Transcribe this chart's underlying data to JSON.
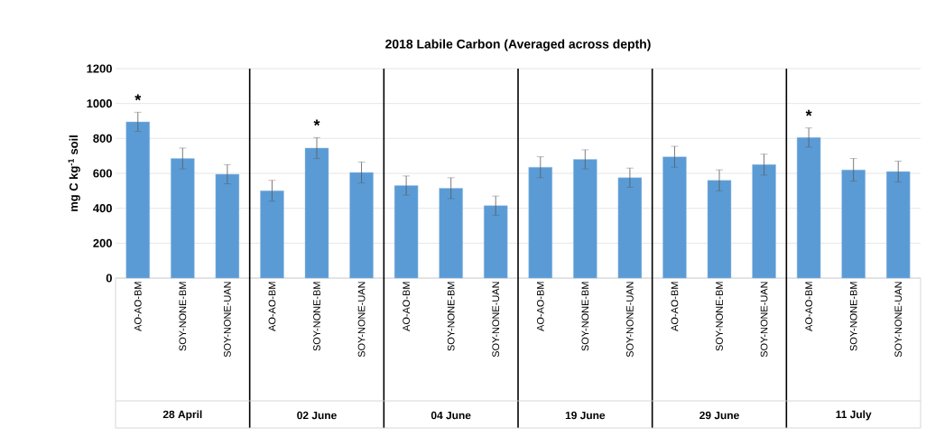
{
  "chart_data": {
    "type": "bar",
    "title": "2018 Labile Carbon (Averaged across depth)",
    "ylabel": "mg C kg$^{-1}$ soil",
    "categories": [
      "AO-AO-BM",
      "SOY-NONE-BM",
      "SOY-NONE-UAN",
      "AO-AO-BM",
      "SOY-NONE-BM",
      "SOY-NONE-UAN",
      "AO-AO-BM",
      "SOY-NONE-BM",
      "SOY-NONE-UAN",
      "AO-AO-BM",
      "SOY-NONE-BM",
      "SOY-NONE-UAN",
      "AO-AO-BM",
      "SOY-NONE-BM",
      "SOY-NONE-UAN",
      "AO-AO-BM",
      "SOY-NONE-BM",
      "SOY-NONE-UAN"
    ],
    "values": [
      895,
      685,
      595,
      500,
      745,
      605,
      530,
      515,
      415,
      635,
      680,
      575,
      695,
      560,
      650,
      805,
      620,
      610
    ],
    "errors": [
      55,
      60,
      55,
      60,
      60,
      60,
      55,
      60,
      55,
      60,
      55,
      55,
      60,
      60,
      60,
      55,
      65,
      60
    ],
    "value_labels": [
      "*",
      null,
      null,
      null,
      "*",
      null,
      null,
      null,
      null,
      null,
      null,
      null,
      null,
      null,
      null,
      "*",
      null,
      null
    ],
    "color": "#5b9bd5",
    "ylim": [
      0,
      1200
    ],
    "yticks": [
      0,
      200,
      400,
      600,
      800,
      1000,
      1200
    ],
    "grid": "y",
    "annotations": [
      "28 April",
      "02 June",
      "04 June",
      "19 June",
      "29 June",
      "11 July"
    ]
  }
}
